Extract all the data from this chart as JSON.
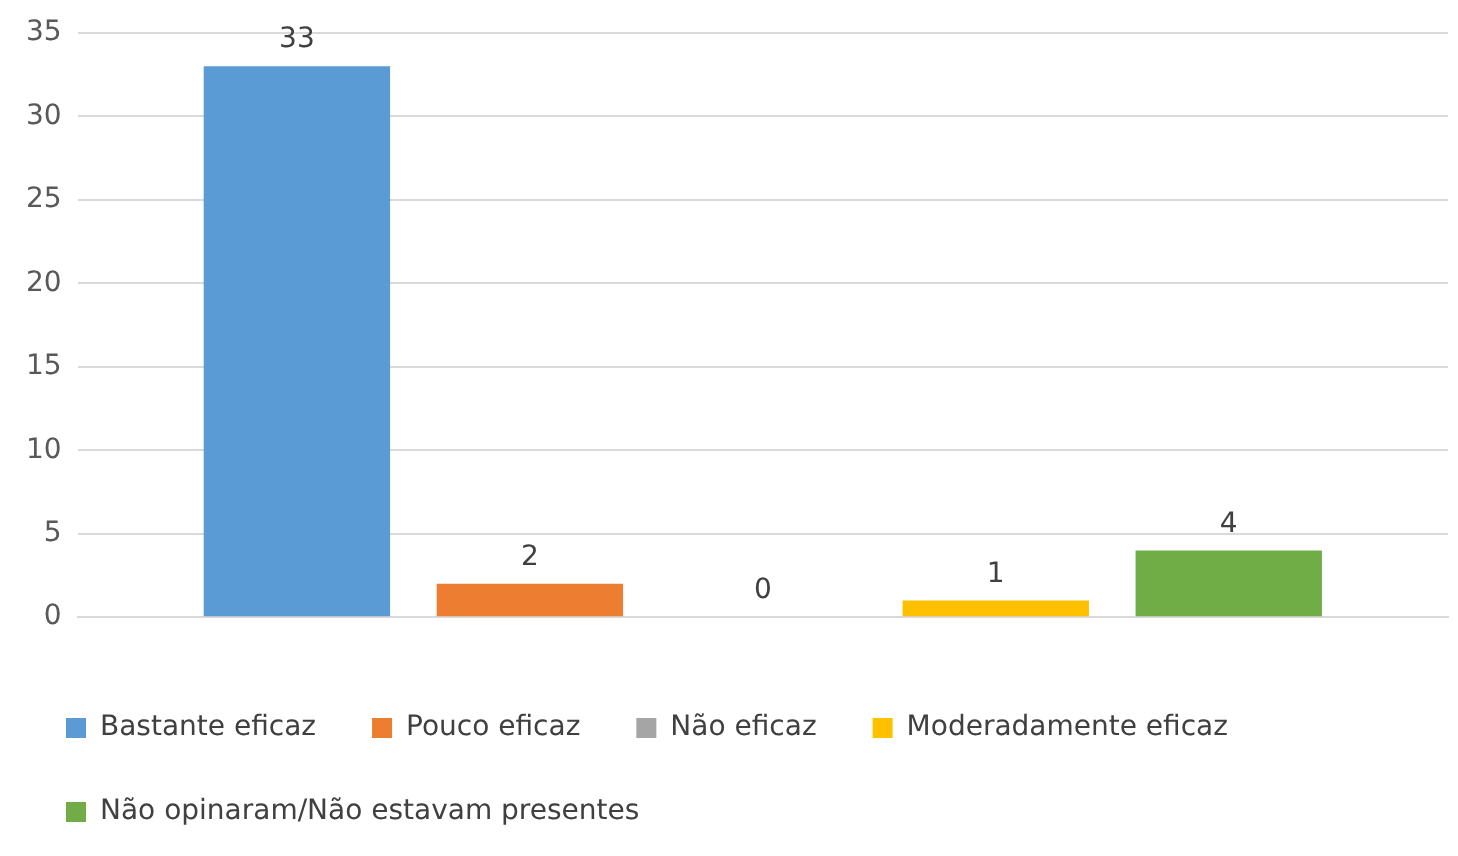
{
  "chart_data": {
    "type": "bar",
    "categories": [
      null
    ],
    "series": [
      {
        "name": "Bastante eficaz",
        "color": "#5b9bd5",
        "values": [
          33
        ]
      },
      {
        "name": "Pouco eficaz",
        "color": "#ed7d31",
        "values": [
          2
        ]
      },
      {
        "name": "Não eficaz",
        "color": "#a5a5a5",
        "values": [
          0
        ]
      },
      {
        "name": "Moderadamente eficaz",
        "color": "#ffc000",
        "values": [
          1
        ]
      },
      {
        "name": "Não opinaram/Não estavam presentes",
        "color": "#70ad47",
        "values": [
          4
        ]
      }
    ],
    "ylim": [
      0,
      35
    ],
    "yticks": [
      0,
      5,
      10,
      15,
      20,
      25,
      30,
      35
    ],
    "grid": "y",
    "legend": "bottom",
    "data_labels": true
  }
}
